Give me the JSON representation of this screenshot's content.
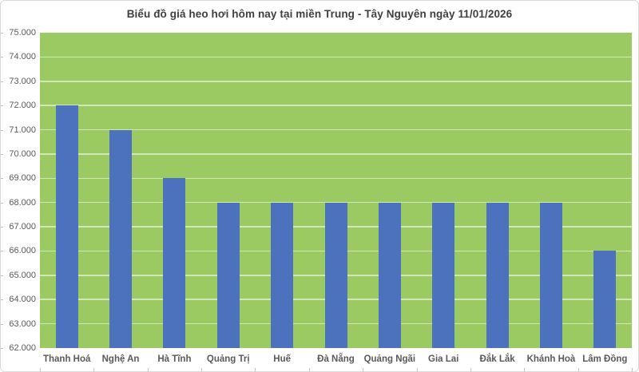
{
  "chart_data": {
    "type": "bar",
    "title": "Biểu đồ giá heo hơi hôm nay tại miền Trung - Tây Nguyên ngày 11/01/2026",
    "categories": [
      "Thanh Hoá",
      "Nghệ An",
      "Hà Tĩnh",
      "Quảng Trị",
      "Huế",
      "Đà Nẵng",
      "Quảng Ngãi",
      "Gia Lai",
      "Đắk Lắk",
      "Khánh Hoà",
      "Lâm Đồng"
    ],
    "values": [
      72000,
      71000,
      69000,
      68000,
      68000,
      68000,
      68000,
      68000,
      68000,
      68000,
      66000
    ],
    "xlabel": "",
    "ylabel": "",
    "ylim": [
      62000,
      75000
    ],
    "ytick_step": 1000,
    "ytick_labels": [
      "62.000",
      "63.000",
      "64.000",
      "65.000",
      "66.000",
      "67.000",
      "68.000",
      "69.000",
      "70.000",
      "71.000",
      "72.000",
      "73.000",
      "74.000",
      "75.000"
    ],
    "grid": true,
    "legend": false,
    "colors": {
      "bar": "#4C72BE",
      "plot_background": "#9BCA62",
      "gridline": "rgba(255,255,255,0.55)",
      "title_text": "#3f3f3f",
      "axis_text": "#595959",
      "tick_mark": "#bfbfbf",
      "frame_border": "#d9d9d9"
    }
  }
}
